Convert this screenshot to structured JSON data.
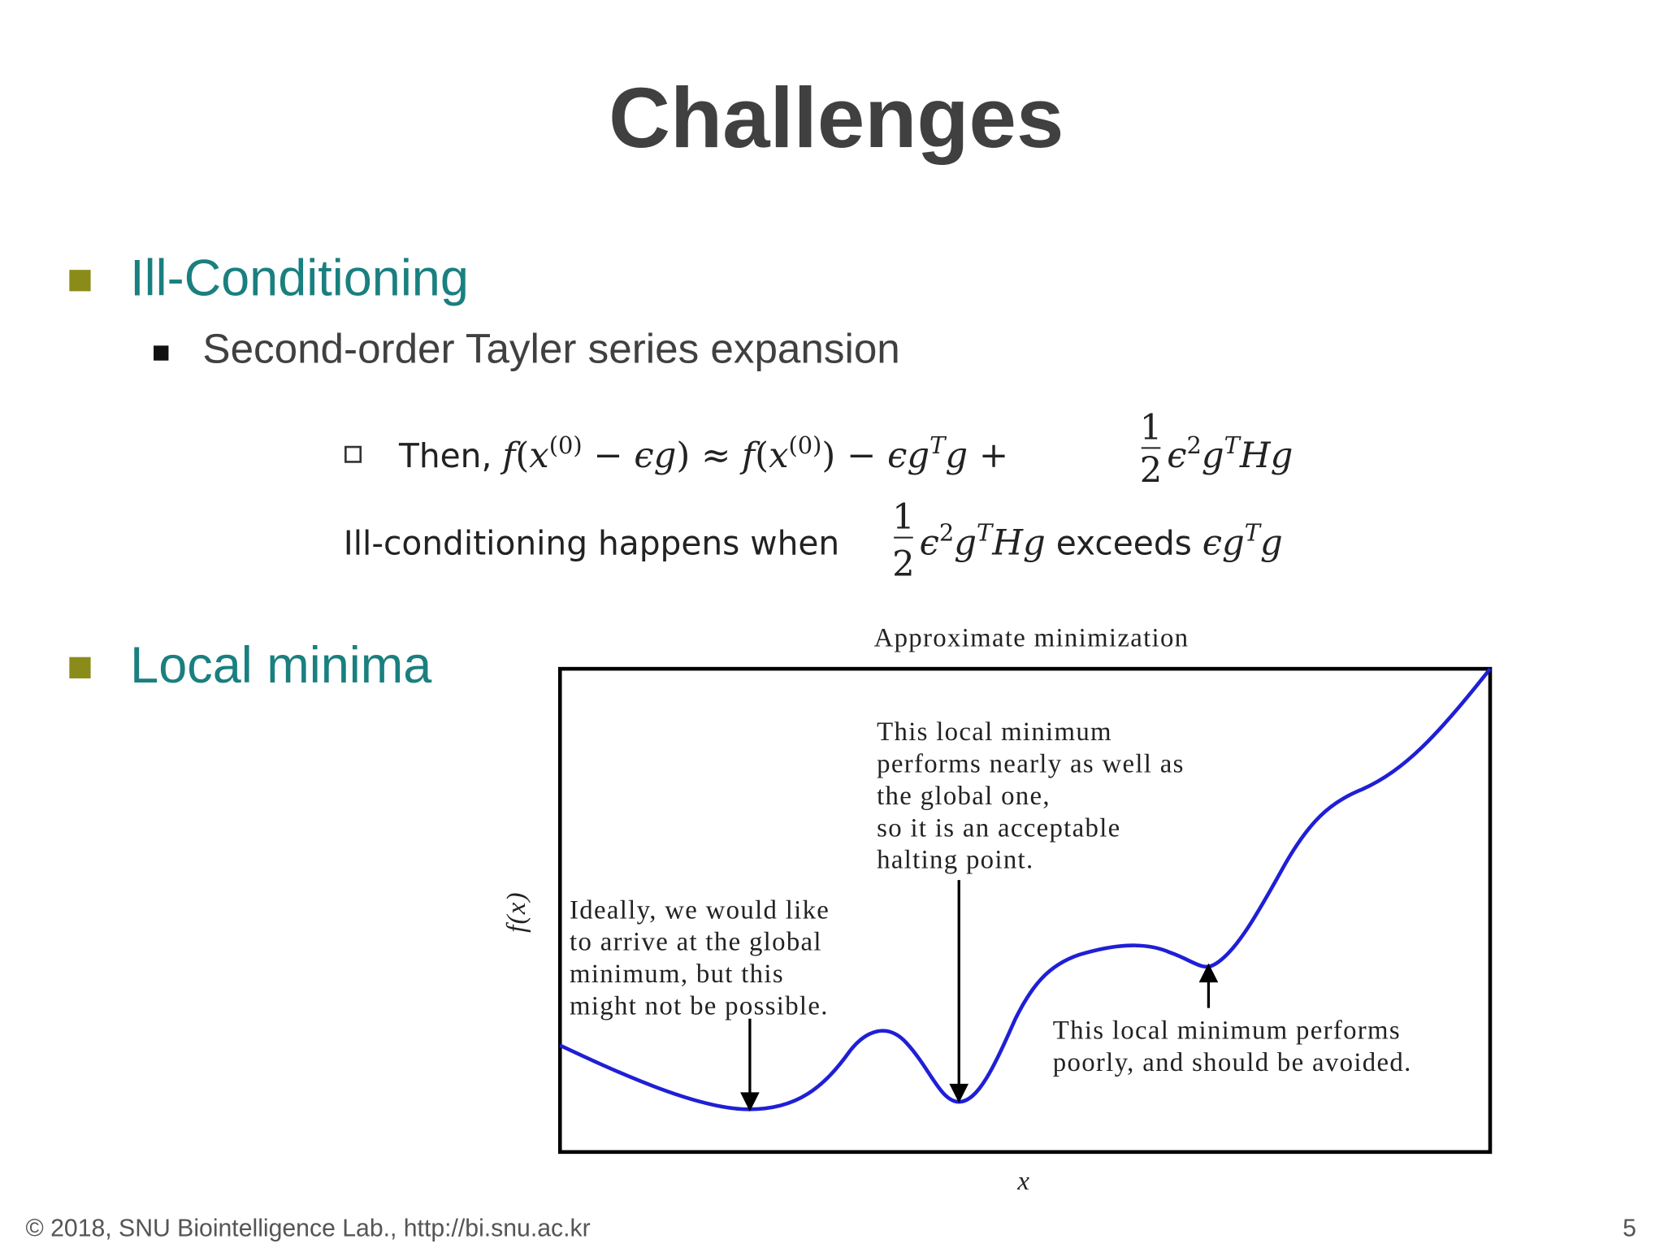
{
  "title": "Challenges",
  "bullets": [
    {
      "text": "Ill-Conditioning",
      "sub": [
        "Second-order Tayler series expansion"
      ]
    },
    {
      "text": "Local minima"
    }
  ],
  "formula": {
    "line1": [
      "Then, ",
      "f",
      "(",
      "x",
      "(0)",
      " − ϵg",
      ")",
      " ≈ ",
      "f",
      "(",
      "x",
      "(0)",
      ")",
      " − ϵg",
      "T",
      "g + ",
      "1",
      "2",
      "ϵ",
      "2",
      "g",
      "T",
      "Hg"
    ],
    "line2": [
      "Ill-conditioning happens when ",
      "1",
      "2",
      "ϵ",
      "2",
      "g",
      "T",
      "Hg",
      " exceeds ",
      "ϵg",
      "T",
      "g"
    ]
  },
  "figure": {
    "title": "Approximate minimization",
    "xlabel": "x",
    "ylabel": "f(x)",
    "annotations": [
      [
        "This local minimum",
        "performs nearly as well as",
        "the global one,",
        "so it is an acceptable",
        "halting point."
      ],
      [
        "Ideally, we would like",
        "to arrive at the global",
        " minimum, but this",
        "might not be possible."
      ],
      [
        "This local minimum performs",
        "poorly, and should be avoided."
      ]
    ]
  },
  "footer": {
    "credit": "© 2018, SNU Biointelligence Lab., http://bi.snu.ac.kr",
    "page": "5"
  }
}
